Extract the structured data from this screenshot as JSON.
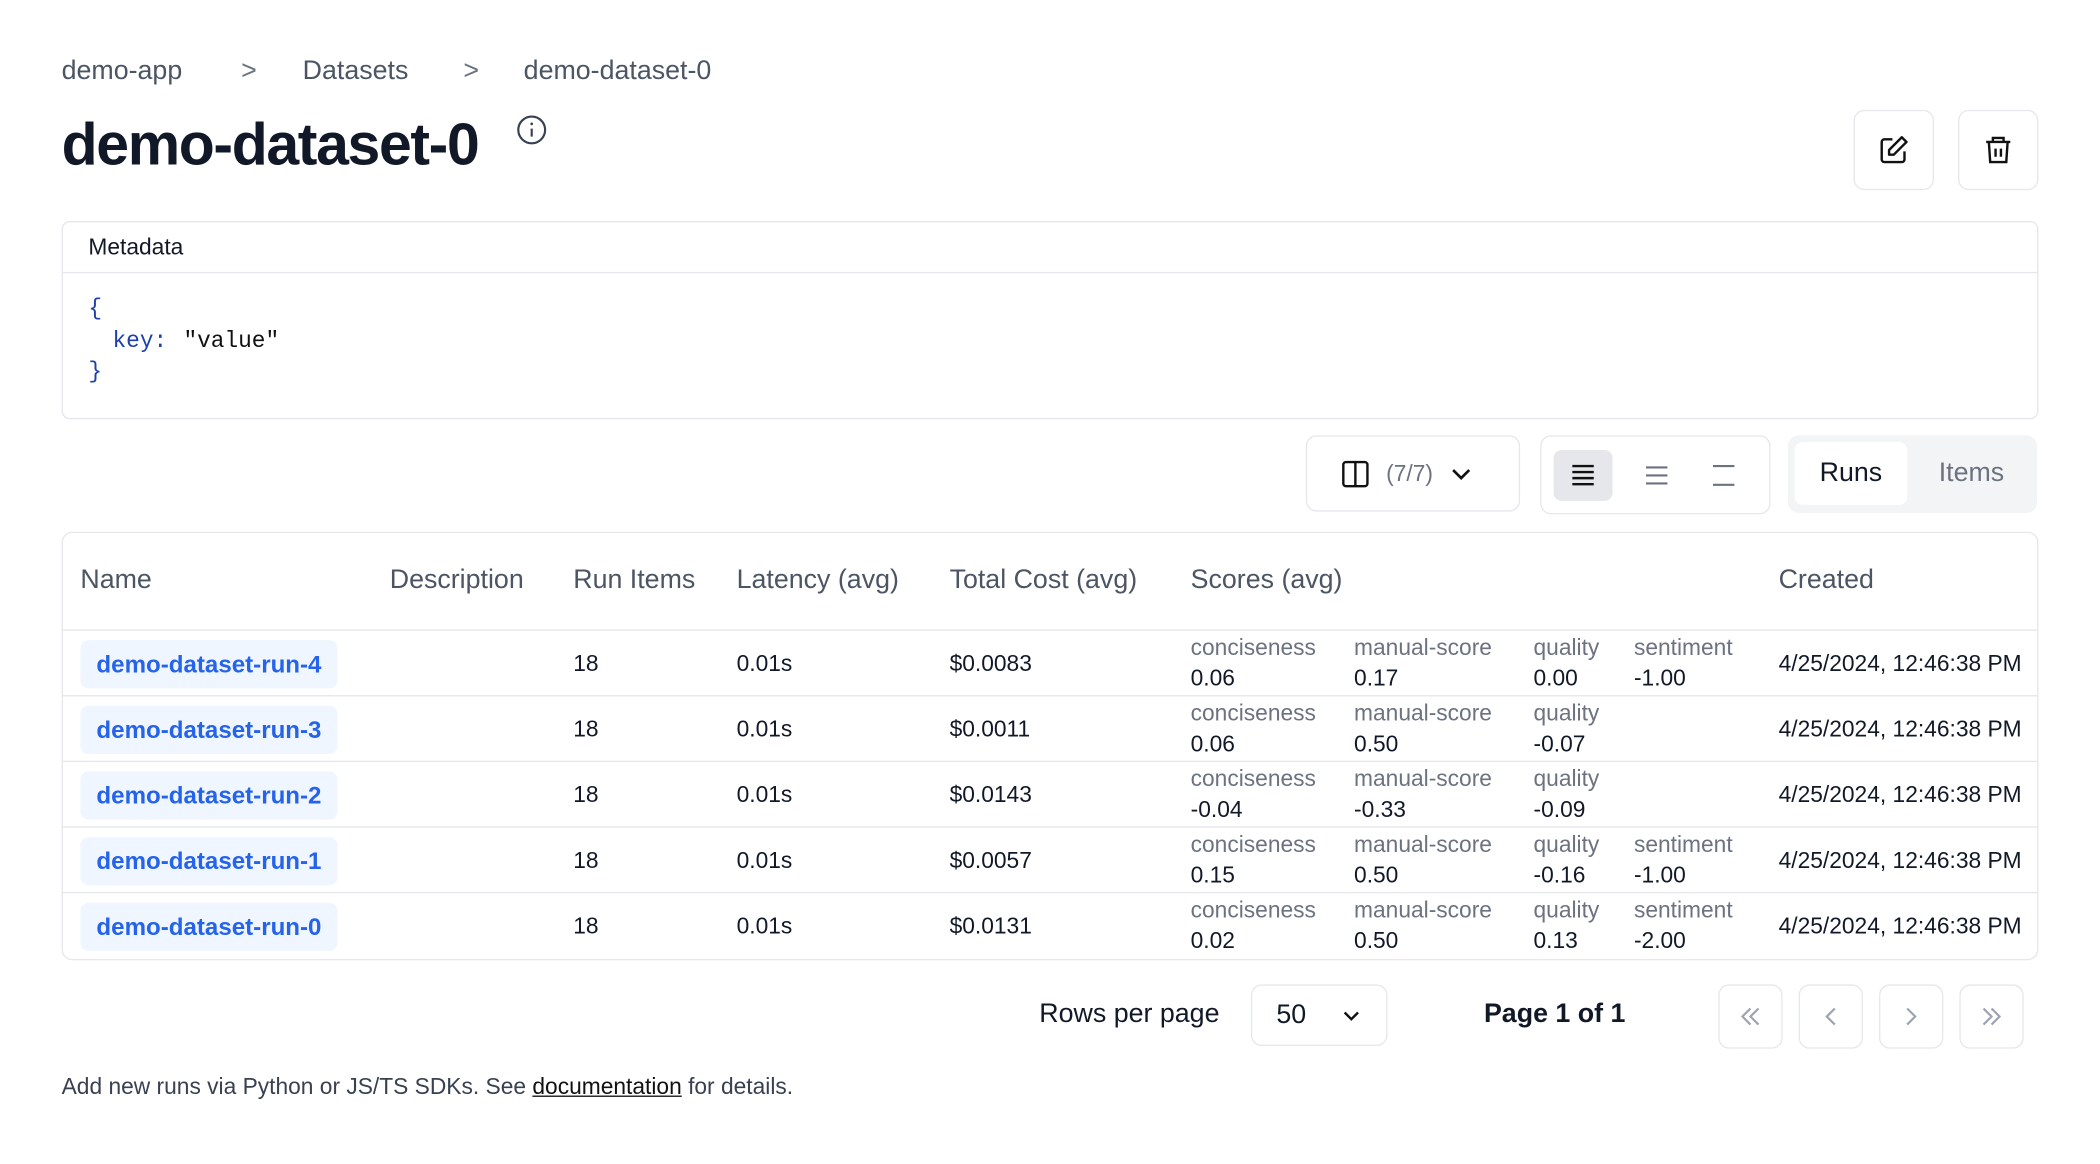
{
  "breadcrumb": [
    "demo-app",
    "Datasets",
    "demo-dataset-0"
  ],
  "title": "demo-dataset-0",
  "metadata": {
    "label": "Metadata",
    "open": "{",
    "key": "key:",
    "value": "\"value\"",
    "close": "}"
  },
  "toolbar": {
    "columns": "(7/7)",
    "tabs": [
      "Runs",
      "Items"
    ]
  },
  "table": {
    "headers": [
      "Name",
      "Description",
      "Run Items",
      "Latency (avg)",
      "Total Cost (avg)",
      "Scores (avg)",
      "Created"
    ],
    "rows": [
      {
        "name": "demo-dataset-run-4",
        "run_items": "18",
        "latency": "0.01s",
        "cost": "$0.0083",
        "scores": [
          {
            "name": "conciseness",
            "value": "0.06"
          },
          {
            "name": "manual-score",
            "value": "0.17"
          },
          {
            "name": "quality",
            "value": "0.00"
          },
          {
            "name": "sentiment",
            "value": "-1.00"
          }
        ],
        "created": "4/25/2024, 12:46:38 PM"
      },
      {
        "name": "demo-dataset-run-3",
        "run_items": "18",
        "latency": "0.01s",
        "cost": "$0.0011",
        "scores": [
          {
            "name": "conciseness",
            "value": "0.06"
          },
          {
            "name": "manual-score",
            "value": "0.50"
          },
          {
            "name": "quality",
            "value": "-0.07"
          }
        ],
        "created": "4/25/2024, 12:46:38 PM"
      },
      {
        "name": "demo-dataset-run-2",
        "run_items": "18",
        "latency": "0.01s",
        "cost": "$0.0143",
        "scores": [
          {
            "name": "conciseness",
            "value": "-0.04"
          },
          {
            "name": "manual-score",
            "value": "-0.33"
          },
          {
            "name": "quality",
            "value": "-0.09"
          }
        ],
        "created": "4/25/2024, 12:46:38 PM"
      },
      {
        "name": "demo-dataset-run-1",
        "run_items": "18",
        "latency": "0.01s",
        "cost": "$0.0057",
        "scores": [
          {
            "name": "conciseness",
            "value": "0.15"
          },
          {
            "name": "manual-score",
            "value": "0.50"
          },
          {
            "name": "quality",
            "value": "-0.16"
          },
          {
            "name": "sentiment",
            "value": "-1.00"
          }
        ],
        "created": "4/25/2024, 12:46:38 PM"
      },
      {
        "name": "demo-dataset-run-0",
        "run_items": "18",
        "latency": "0.01s",
        "cost": "$0.0131",
        "scores": [
          {
            "name": "conciseness",
            "value": "0.02"
          },
          {
            "name": "manual-score",
            "value": "0.50"
          },
          {
            "name": "quality",
            "value": "0.13"
          },
          {
            "name": "sentiment",
            "value": "-2.00"
          }
        ],
        "created": "4/25/2024, 12:46:38 PM"
      }
    ]
  },
  "pagination": {
    "rows_label": "Rows per page",
    "rows_value": "50",
    "page": "Page 1 of 1"
  },
  "footer": {
    "before": "Add new runs via Python or JS/TS SDKs. See ",
    "link": "documentation",
    "after": " for details."
  }
}
